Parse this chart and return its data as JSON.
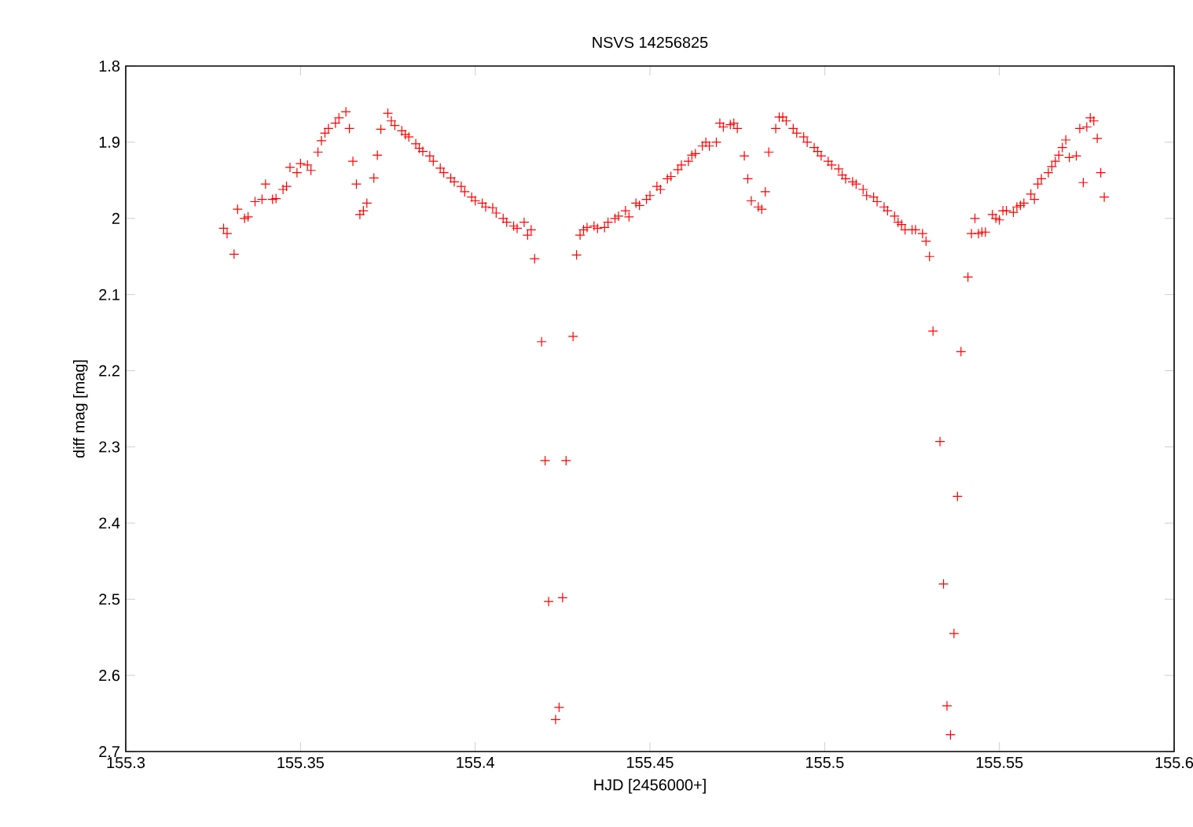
{
  "chart_data": {
    "type": "scatter",
    "title": "NSVS 14256825",
    "xlabel": "HJD [2456000+]",
    "ylabel": "diff mag [mag]",
    "marker": "cross",
    "grid": false,
    "legend": false,
    "xlim": [
      155.3,
      155.6
    ],
    "ylim": [
      2.7,
      1.8
    ],
    "xticks": [
      155.3,
      155.35,
      155.4,
      155.45,
      155.5,
      155.55,
      155.6
    ],
    "yticks": [
      1.8,
      1.9,
      2,
      2.1,
      2.2,
      2.3,
      2.4,
      2.5,
      2.6,
      2.7
    ],
    "series": [
      {
        "color": "#ff0000",
        "x": [
          155.328,
          155.329,
          155.331,
          155.332,
          155.334,
          155.335,
          155.337,
          155.339,
          155.34,
          155.342,
          155.343,
          155.345,
          155.346,
          155.347,
          155.349,
          155.35,
          155.352,
          155.353,
          155.355,
          155.356,
          155.357,
          155.358,
          155.36,
          155.361,
          155.363,
          155.364,
          155.365,
          155.366,
          155.367,
          155.368,
          155.369,
          155.371,
          155.372,
          155.373,
          155.375,
          155.376,
          155.377,
          155.379,
          155.38,
          155.381,
          155.383,
          155.384,
          155.385,
          155.387,
          155.388,
          155.39,
          155.391,
          155.393,
          155.394,
          155.396,
          155.397,
          155.399,
          155.4,
          155.402,
          155.403,
          155.405,
          155.406,
          155.408,
          155.409,
          155.411,
          155.412,
          155.414,
          155.415,
          155.416,
          155.417,
          155.419,
          155.42,
          155.421,
          155.423,
          155.424,
          155.425,
          155.426,
          155.428,
          155.429,
          155.43,
          155.431,
          155.432,
          155.434,
          155.435,
          155.437,
          155.438,
          155.44,
          155.441,
          155.443,
          155.444,
          155.446,
          155.447,
          155.449,
          155.45,
          155.452,
          155.453,
          155.455,
          155.456,
          155.458,
          155.459,
          155.461,
          155.462,
          155.463,
          155.465,
          155.466,
          155.467,
          155.469,
          155.47,
          155.471,
          155.473,
          155.474,
          155.475,
          155.477,
          155.478,
          155.479,
          155.481,
          155.482,
          155.483,
          155.484,
          155.486,
          155.487,
          155.488,
          155.489,
          155.491,
          155.492,
          155.494,
          155.495,
          155.497,
          155.498,
          155.499,
          155.501,
          155.502,
          155.504,
          155.505,
          155.506,
          155.508,
          155.509,
          155.511,
          155.512,
          155.514,
          155.515,
          155.517,
          155.518,
          155.52,
          155.521,
          155.522,
          155.523,
          155.525,
          155.526,
          155.528,
          155.529,
          155.53,
          155.531,
          155.533,
          155.534,
          155.535,
          155.536,
          155.537,
          155.538,
          155.539,
          155.541,
          155.542,
          155.543,
          155.544,
          155.545,
          155.546,
          155.548,
          155.549,
          155.55,
          155.551,
          155.552,
          155.554,
          155.555,
          155.556,
          155.557,
          155.559,
          155.56,
          155.561,
          155.562,
          155.564,
          155.565,
          155.566,
          155.567,
          155.568,
          155.569,
          155.57,
          155.572,
          155.573,
          155.574,
          155.575,
          155.576,
          155.577,
          155.578,
          155.579,
          155.58
        ],
        "values": [
          2.013,
          2.02,
          2.047,
          1.988,
          2.0,
          1.998,
          1.978,
          1.975,
          1.955,
          1.975,
          1.974,
          1.962,
          1.958,
          1.933,
          1.94,
          1.928,
          1.93,
          1.937,
          1.913,
          1.898,
          1.888,
          1.882,
          1.875,
          1.868,
          1.86,
          1.882,
          1.925,
          1.955,
          1.995,
          1.99,
          1.98,
          1.947,
          1.917,
          1.883,
          1.862,
          1.872,
          1.878,
          1.885,
          1.89,
          1.893,
          1.902,
          1.908,
          1.912,
          1.918,
          1.925,
          1.934,
          1.94,
          1.947,
          1.952,
          1.958,
          1.965,
          1.972,
          1.977,
          1.98,
          1.985,
          1.986,
          1.993,
          2.0,
          2.005,
          2.01,
          2.013,
          2.005,
          2.022,
          2.015,
          2.053,
          2.162,
          2.318,
          2.503,
          2.658,
          2.642,
          2.498,
          2.318,
          2.155,
          2.048,
          2.022,
          2.015,
          2.012,
          2.01,
          2.013,
          2.012,
          2.005,
          2.0,
          1.997,
          1.99,
          1.998,
          1.98,
          1.983,
          1.975,
          1.97,
          1.958,
          1.962,
          1.948,
          1.945,
          1.936,
          1.93,
          1.925,
          1.917,
          1.915,
          1.905,
          1.9,
          1.905,
          1.9,
          1.875,
          1.88,
          1.877,
          1.875,
          1.882,
          1.918,
          1.948,
          1.977,
          1.985,
          1.988,
          1.965,
          1.913,
          1.882,
          1.867,
          1.867,
          1.872,
          1.882,
          1.888,
          1.893,
          1.9,
          1.907,
          1.912,
          1.918,
          1.925,
          1.93,
          1.935,
          1.943,
          1.948,
          1.952,
          1.955,
          1.962,
          1.97,
          1.972,
          1.978,
          1.985,
          1.99,
          1.997,
          2.005,
          2.008,
          2.015,
          2.015,
          2.015,
          2.02,
          2.03,
          2.05,
          2.148,
          2.293,
          2.48,
          2.64,
          2.678,
          2.545,
          2.365,
          2.175,
          2.077,
          2.02,
          2.0,
          2.02,
          2.018,
          2.018,
          1.995,
          2.0,
          2.002,
          1.99,
          1.99,
          1.992,
          1.985,
          1.983,
          1.98,
          1.968,
          1.975,
          1.955,
          1.948,
          1.94,
          1.932,
          1.925,
          1.917,
          1.907,
          1.897,
          1.92,
          1.918,
          1.882,
          1.953,
          1.88,
          1.868,
          1.872,
          1.895,
          1.94,
          1.972
        ]
      }
    ]
  }
}
